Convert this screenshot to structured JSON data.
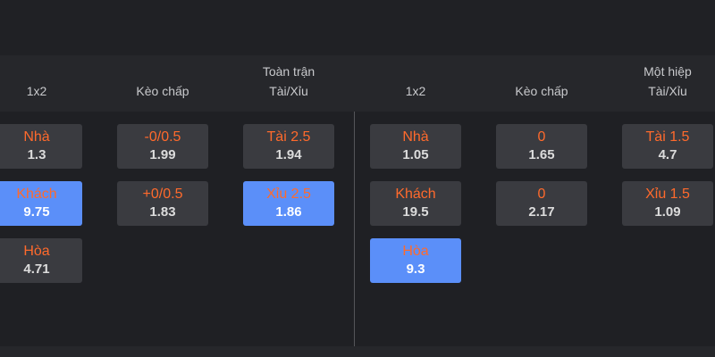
{
  "sections": [
    {
      "columns": [
        {
          "header": [
            "1x2"
          ],
          "cells": [
            {
              "label": "Nhà",
              "odds": "1.3",
              "selected": false
            },
            {
              "label": "Khách",
              "odds": "9.75",
              "selected": true
            },
            {
              "label": "Hòa",
              "odds": "4.71",
              "selected": false
            }
          ]
        },
        {
          "header": [
            "Kèo chấp"
          ],
          "cells": [
            {
              "label": "-0/0.5",
              "odds": "1.99",
              "selected": false
            },
            {
              "label": "+0/0.5",
              "odds": "1.83",
              "selected": false
            }
          ]
        },
        {
          "header": [
            "Toàn trận",
            "Tài/Xỉu"
          ],
          "cells": [
            {
              "label": "Tài 2.5",
              "odds": "1.94",
              "selected": false
            },
            {
              "label": "Xỉu 2.5",
              "odds": "1.86",
              "selected": true
            }
          ]
        }
      ]
    },
    {
      "columns": [
        {
          "header": [
            "1x2"
          ],
          "cells": [
            {
              "label": "Nhà",
              "odds": "1.05",
              "selected": false
            },
            {
              "label": "Khách",
              "odds": "19.5",
              "selected": false
            },
            {
              "label": "Hòa",
              "odds": "9.3",
              "selected": true
            }
          ]
        },
        {
          "header": [
            "Kèo chấp"
          ],
          "cells": [
            {
              "label": "0",
              "odds": "1.65",
              "selected": false
            },
            {
              "label": "0",
              "odds": "2.17",
              "selected": false
            }
          ]
        },
        {
          "header": [
            "Một hiệp",
            "Tài/Xỉu"
          ],
          "cells": [
            {
              "label": "Tài 1.5",
              "odds": "4.7",
              "selected": false
            },
            {
              "label": "Xỉu 1.5",
              "odds": "1.09",
              "selected": false
            }
          ]
        }
      ]
    }
  ]
}
